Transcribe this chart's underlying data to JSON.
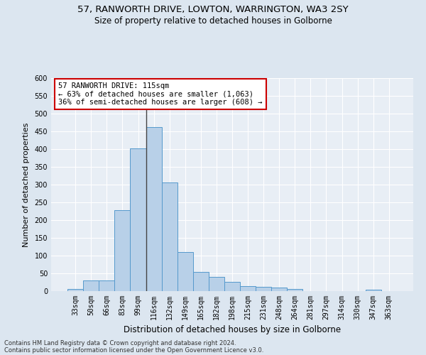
{
  "title1": "57, RANWORTH DRIVE, LOWTON, WARRINGTON, WA3 2SY",
  "title2": "Size of property relative to detached houses in Golborne",
  "xlabel": "Distribution of detached houses by size in Golborne",
  "ylabel": "Number of detached properties",
  "categories": [
    "33sqm",
    "50sqm",
    "66sqm",
    "83sqm",
    "99sqm",
    "116sqm",
    "132sqm",
    "149sqm",
    "165sqm",
    "182sqm",
    "198sqm",
    "215sqm",
    "231sqm",
    "248sqm",
    "264sqm",
    "281sqm",
    "297sqm",
    "314sqm",
    "330sqm",
    "347sqm",
    "363sqm"
  ],
  "values": [
    7,
    30,
    30,
    228,
    403,
    463,
    307,
    110,
    54,
    40,
    27,
    15,
    13,
    10,
    6,
    0,
    0,
    0,
    0,
    5,
    0
  ],
  "bar_color": "#b8d0e8",
  "bar_edge_color": "#5599cc",
  "annotation_line": "57 RANWORTH DRIVE: 115sqm",
  "annotation_line2": "← 63% of detached houses are smaller (1,063)",
  "annotation_line3": "36% of semi-detached houses are larger (608) →",
  "annotation_box_color": "#ffffff",
  "annotation_box_edge": "#cc0000",
  "ylim": [
    0,
    600
  ],
  "yticks": [
    0,
    50,
    100,
    150,
    200,
    250,
    300,
    350,
    400,
    450,
    500,
    550,
    600
  ],
  "fig_background": "#dce6f0",
  "axes_background": "#e8eef5",
  "grid_color": "#ffffff",
  "footnote1": "Contains HM Land Registry data © Crown copyright and database right 2024.",
  "footnote2": "Contains public sector information licensed under the Open Government Licence v3.0."
}
